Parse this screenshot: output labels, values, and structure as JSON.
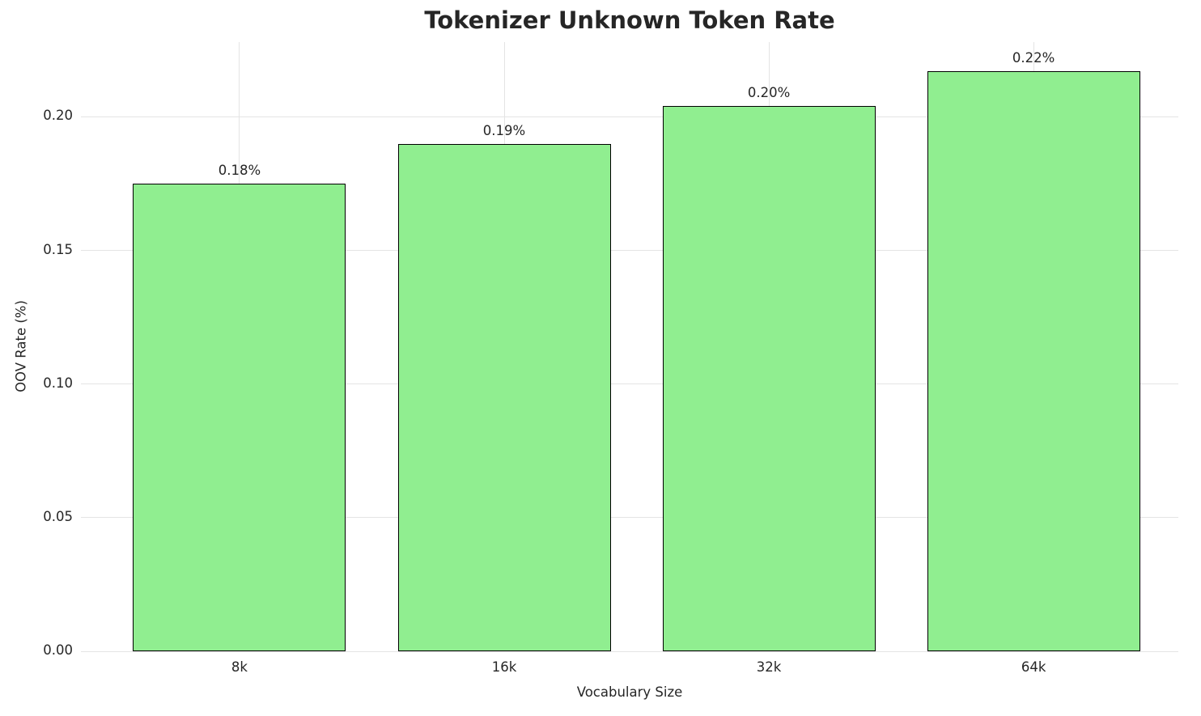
{
  "chart_data": {
    "type": "bar",
    "title": "Tokenizer Unknown Token Rate",
    "xlabel": "Vocabulary Size",
    "ylabel": "OOV Rate (%)",
    "categories": [
      "8k",
      "16k",
      "32k",
      "64k"
    ],
    "values": [
      0.175,
      0.19,
      0.204,
      0.217
    ],
    "bar_labels": [
      "0.18%",
      "0.19%",
      "0.20%",
      "0.22%"
    ],
    "yticks": [
      0.0,
      0.05,
      0.1,
      0.15,
      0.2
    ],
    "ytick_labels": [
      "0.00",
      "0.05",
      "0.10",
      "0.15",
      "0.20"
    ],
    "ylim": [
      0,
      0.228
    ],
    "grid": true,
    "legend": "none",
    "bar_color": "#90EE90",
    "bar_edge_color": "#000000",
    "grid_color": "#e4e4e4",
    "background_color": "#ffffff",
    "text_color": "#262626"
  }
}
